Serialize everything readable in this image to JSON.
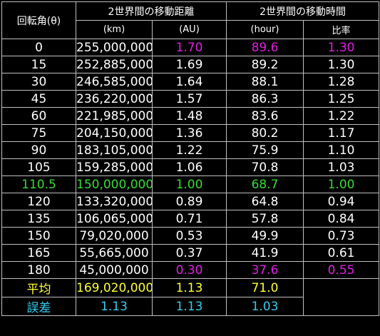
{
  "header": {
    "angle_label": "回転角(θ)",
    "distance_group": "2世界間の移動距離",
    "time_group": "2世界間の移動時間",
    "unit_km": "(km)",
    "unit_au": "(AU)",
    "unit_hour": "(hour)",
    "ratio_label": "比率"
  },
  "colors": {
    "default": "#ffffff",
    "magenta": "#e01ee0",
    "green": "#33dd33",
    "yellow": "#ffff33",
    "cyan": "#33ccee"
  },
  "rows": [
    {
      "angle": "0",
      "km": "255,000,000",
      "au": "1.70",
      "hour": "89.6",
      "ratio": "1.30"
    },
    {
      "angle": "15",
      "km": "252,885,000",
      "au": "1.69",
      "hour": "89.2",
      "ratio": "1.30"
    },
    {
      "angle": "30",
      "km": "246,585,000",
      "au": "1.64",
      "hour": "88.1",
      "ratio": "1.28"
    },
    {
      "angle": "45",
      "km": "236,220,000",
      "au": "1.57",
      "hour": "86.3",
      "ratio": "1.25"
    },
    {
      "angle": "60",
      "km": "221,985,000",
      "au": "1.48",
      "hour": "83.6",
      "ratio": "1.22"
    },
    {
      "angle": "75",
      "km": "204,150,000",
      "au": "1.36",
      "hour": "80.2",
      "ratio": "1.17"
    },
    {
      "angle": "90",
      "km": "183,105,000",
      "au": "1.22",
      "hour": "75.9",
      "ratio": "1.10"
    },
    {
      "angle": "105",
      "km": "159,285,000",
      "au": "1.06",
      "hour": "70.8",
      "ratio": "1.03"
    },
    {
      "angle": "110.5",
      "km": "150,000,000",
      "au": "1.00",
      "hour": "68.7",
      "ratio": "1.00"
    },
    {
      "angle": "120",
      "km": "133,320,000",
      "au": "0.89",
      "hour": "64.8",
      "ratio": "0.94"
    },
    {
      "angle": "135",
      "km": "106,065,000",
      "au": "0.71",
      "hour": "57.8",
      "ratio": "0.84"
    },
    {
      "angle": "150",
      "km": "79,020,000",
      "au": "0.53",
      "hour": "49.9",
      "ratio": "0.73"
    },
    {
      "angle": "165",
      "km": "55,665,000",
      "au": "0.37",
      "hour": "41.9",
      "ratio": "0.61"
    },
    {
      "angle": "180",
      "km": "45,000,000",
      "au": "0.30",
      "hour": "37.6",
      "ratio": "0.55"
    }
  ],
  "average": {
    "label": "平均",
    "km": "169,020,000",
    "au": "1.13",
    "hour": "71.0"
  },
  "error": {
    "label": "誤差",
    "km": "1.13",
    "au": "1.13",
    "hour": "1.03"
  }
}
